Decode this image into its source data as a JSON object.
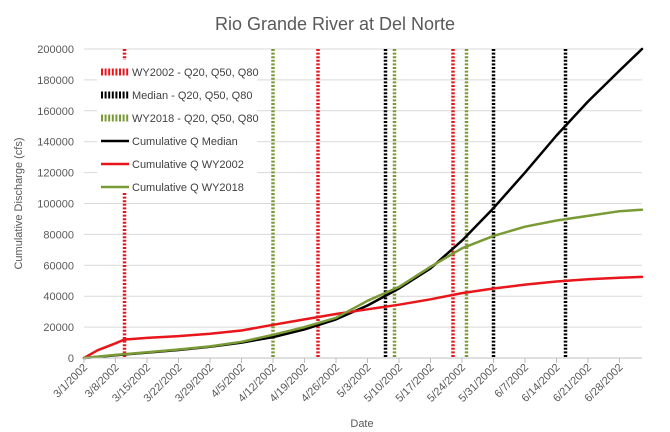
{
  "chart_data": {
    "type": "line",
    "title": "Rio Grande River at Del Norte",
    "xlabel": "Date",
    "ylabel": "Cumulative Discharge (cfs)",
    "ylim": [
      0,
      200000
    ],
    "xlim": [
      "3/1/2002",
      "7/3/2002"
    ],
    "y_ticks": [
      "0",
      "20000",
      "40000",
      "60000",
      "80000",
      "100000",
      "120000",
      "140000",
      "160000",
      "180000",
      "200000"
    ],
    "x_ticks": [
      "3/1/2002",
      "3/8/2002",
      "3/15/2002",
      "3/22/2002",
      "3/29/2002",
      "4/5/2002",
      "4/12/2002",
      "4/19/2002",
      "4/26/2002",
      "5/3/2002",
      "5/10/2002",
      "5/17/2002",
      "5/24/2002",
      "5/31/2002",
      "6/7/2002",
      "6/14/2002",
      "6/21/2002",
      "6/28/2002"
    ],
    "grid": true,
    "legend_position": "top-left",
    "series": [
      {
        "name": "Cumulative Q Median",
        "color": "#000000",
        "points": [
          [
            "3/1/2002",
            0
          ],
          [
            "3/8/2002",
            1800
          ],
          [
            "3/15/2002",
            3500
          ],
          [
            "3/22/2002",
            5200
          ],
          [
            "3/29/2002",
            7300
          ],
          [
            "4/5/2002",
            10000
          ],
          [
            "4/12/2002",
            13500
          ],
          [
            "4/19/2002",
            18500
          ],
          [
            "4/26/2002",
            25000
          ],
          [
            "5/3/2002",
            34000
          ],
          [
            "5/10/2002",
            45000
          ],
          [
            "5/17/2002",
            58000
          ],
          [
            "5/24/2002",
            76000
          ],
          [
            "5/31/2002",
            97000
          ],
          [
            "6/7/2002",
            120000
          ],
          [
            "6/14/2002",
            144000
          ],
          [
            "6/21/2002",
            166000
          ],
          [
            "6/28/2002",
            186000
          ],
          [
            "7/3/2002",
            200000
          ]
        ]
      },
      {
        "name": "Cumulative Q WY2002",
        "color": "#e8161b",
        "points": [
          [
            "3/1/2002",
            0
          ],
          [
            "3/4/2002",
            5000
          ],
          [
            "3/8/2002",
            9500
          ],
          [
            "3/10/2002",
            12000
          ],
          [
            "3/15/2002",
            13000
          ],
          [
            "3/22/2002",
            14200
          ],
          [
            "3/29/2002",
            15700
          ],
          [
            "4/5/2002",
            17800
          ],
          [
            "4/12/2002",
            21500
          ],
          [
            "4/19/2002",
            25000
          ],
          [
            "4/26/2002",
            28500
          ],
          [
            "5/3/2002",
            31500
          ],
          [
            "5/10/2002",
            34500
          ],
          [
            "5/17/2002",
            38000
          ],
          [
            "5/24/2002",
            42000
          ],
          [
            "5/31/2002",
            45000
          ],
          [
            "6/7/2002",
            47500
          ],
          [
            "6/14/2002",
            49500
          ],
          [
            "6/21/2002",
            51000
          ],
          [
            "6/28/2002",
            52000
          ],
          [
            "7/3/2002",
            52500
          ]
        ]
      },
      {
        "name": "Cumulative Q WY2018",
        "color": "#7a9a36",
        "points": [
          [
            "3/1/2002",
            0
          ],
          [
            "3/8/2002",
            2000
          ],
          [
            "3/15/2002",
            3700
          ],
          [
            "3/22/2002",
            5500
          ],
          [
            "3/29/2002",
            7500
          ],
          [
            "4/5/2002",
            10500
          ],
          [
            "4/12/2002",
            15000
          ],
          [
            "4/19/2002",
            20000
          ],
          [
            "4/26/2002",
            26000
          ],
          [
            "5/3/2002",
            37000
          ],
          [
            "5/10/2002",
            46000
          ],
          [
            "5/17/2002",
            59000
          ],
          [
            "5/24/2002",
            71000
          ],
          [
            "5/31/2002",
            79000
          ],
          [
            "6/7/2002",
            85000
          ],
          [
            "6/14/2002",
            89000
          ],
          [
            "6/21/2002",
            92000
          ],
          [
            "6/28/2002",
            95000
          ],
          [
            "7/3/2002",
            96000
          ]
        ]
      }
    ],
    "vertical_markers": [
      {
        "name": "WY2002 - Q20, Q50, Q80",
        "color": "#e8161b",
        "dates": [
          "3/10/2002",
          "4/22/2002",
          "5/22/2002"
        ]
      },
      {
        "name": "Median - Q20, Q50, Q80",
        "color": "#000000",
        "dates": [
          "5/7/2002",
          "5/31/2002",
          "6/16/2002"
        ]
      },
      {
        "name": "WY2018 - Q20, Q50, Q80",
        "color": "#7a9a36",
        "dates": [
          "4/12/2002",
          "5/9/2002",
          "5/25/2002"
        ]
      }
    ]
  }
}
